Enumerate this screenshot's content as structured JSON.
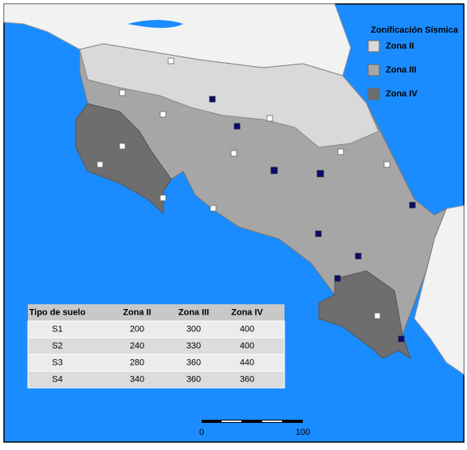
{
  "legend": {
    "title": "Zonificación Sísmica",
    "items": [
      "Zona II",
      "Zona III",
      "Zona IV"
    ]
  },
  "table": {
    "header": [
      "Tipo de suelo",
      "Zona II",
      "Zona III",
      "Zona IV"
    ],
    "rows": [
      [
        "S1",
        200,
        300,
        400
      ],
      [
        "S2",
        240,
        330,
        400
      ],
      [
        "S3",
        280,
        360,
        440
      ],
      [
        "S4",
        340,
        360,
        360
      ]
    ]
  },
  "scale_bar": {
    "labels": [
      "0",
      "100"
    ]
  }
}
